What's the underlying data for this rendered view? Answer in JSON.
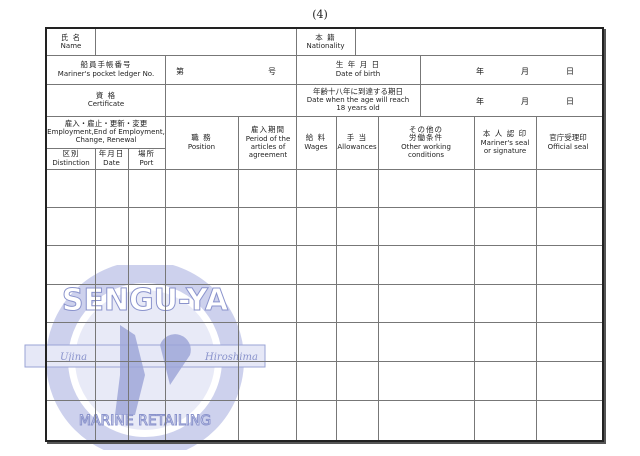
{
  "page_number": "(4)",
  "header": {
    "name": {
      "jp": "氏 名",
      "en": "Name"
    },
    "nationality": {
      "jp": "本 籍",
      "en": "Nationality"
    },
    "ledger": {
      "jp": "船員手帳番号",
      "en": "Mariner's pocket ledger No.",
      "dai": "第",
      "go": "号"
    },
    "birth": {
      "jp": "生 年 月 日",
      "en": "Date of birth"
    },
    "certificate": {
      "jp": "資 格",
      "en": "Certificate"
    },
    "age18": {
      "jp": "年齢十八年に到達する期日",
      "en1": "Date when the age will reach",
      "en2": "18 years old"
    },
    "year": "年",
    "month": "月",
    "day": "日"
  },
  "columns": {
    "employment": {
      "jp": "雇入・雇止・更新・変更",
      "en1": "Employment,End of Employment,",
      "en2": "Change, Renewal"
    },
    "distinction": {
      "jp": "区別",
      "en": "Distinction"
    },
    "date": {
      "jp": "年月日",
      "en": "Date"
    },
    "port": {
      "jp": "場所",
      "en": "Port"
    },
    "position": {
      "jp": "職 務",
      "en": "Position"
    },
    "period": {
      "jp": "雇入期間",
      "en": "Period of the articles of agreement"
    },
    "wages": {
      "jp": "給 料",
      "en": "Wages"
    },
    "allowances": {
      "jp": "手 当",
      "en": "Allowances"
    },
    "other": {
      "jp1": "その他の",
      "jp2": "労働条件",
      "en": "Other working conditions"
    },
    "seal": {
      "jp": "本 人 認 印",
      "en": "Mariner's seal or signature"
    },
    "official": {
      "jp": "官庁受理印",
      "en": "Official seal"
    }
  },
  "watermark": {
    "top": "SENGU-YA",
    "bottom": "MARINE RETAILING",
    "left": "Ujina",
    "right": "Hiroshima",
    "color": "#9aa3d6"
  }
}
